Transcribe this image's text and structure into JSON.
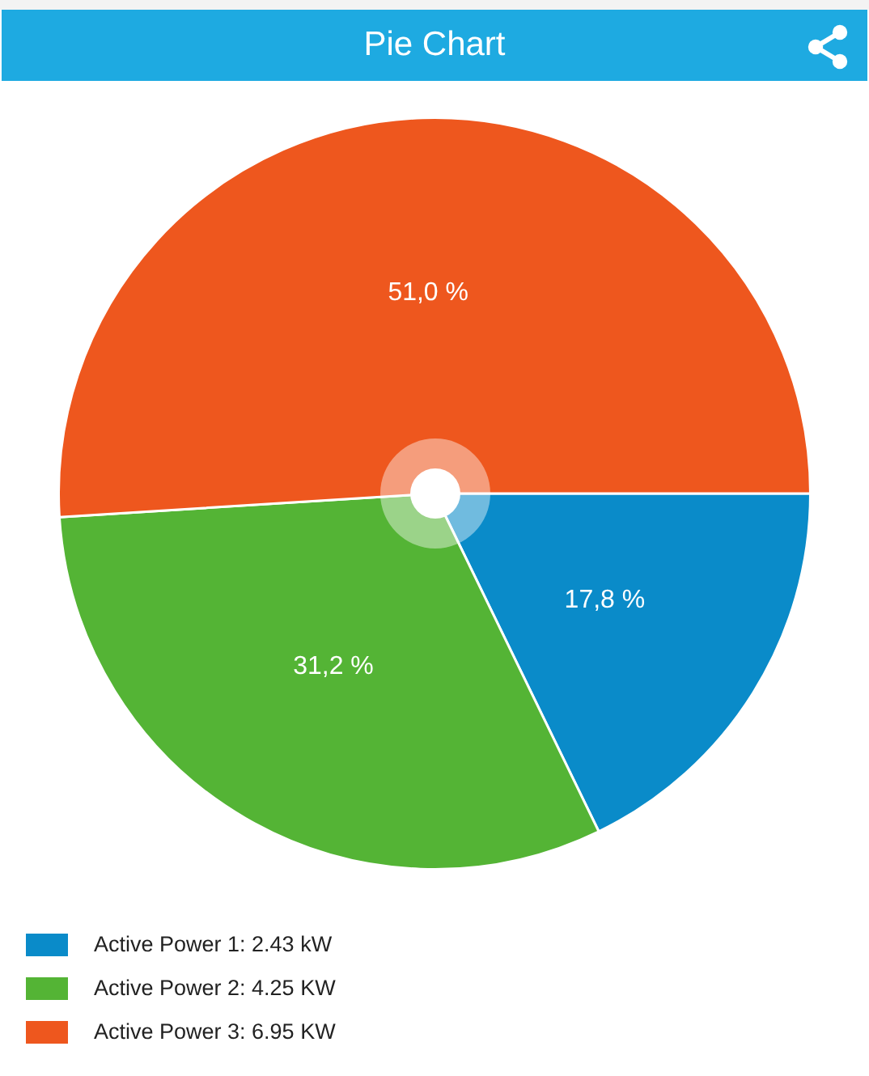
{
  "chart_data": {
    "type": "pie",
    "title": "Pie Chart",
    "categories": [
      "Active Power 1: 2.43 kW",
      "Active Power 2: 4.25 KW",
      "Active Power 3: 6.95 KW"
    ],
    "values": [
      17.8,
      31.2,
      51.0
    ],
    "colors": [
      "#0a8bc9",
      "#54b435",
      "#ee571e"
    ],
    "value_labels": [
      "17,8 %",
      "31,2 %",
      "51,0 %"
    ],
    "legend": "bottom left"
  }
}
